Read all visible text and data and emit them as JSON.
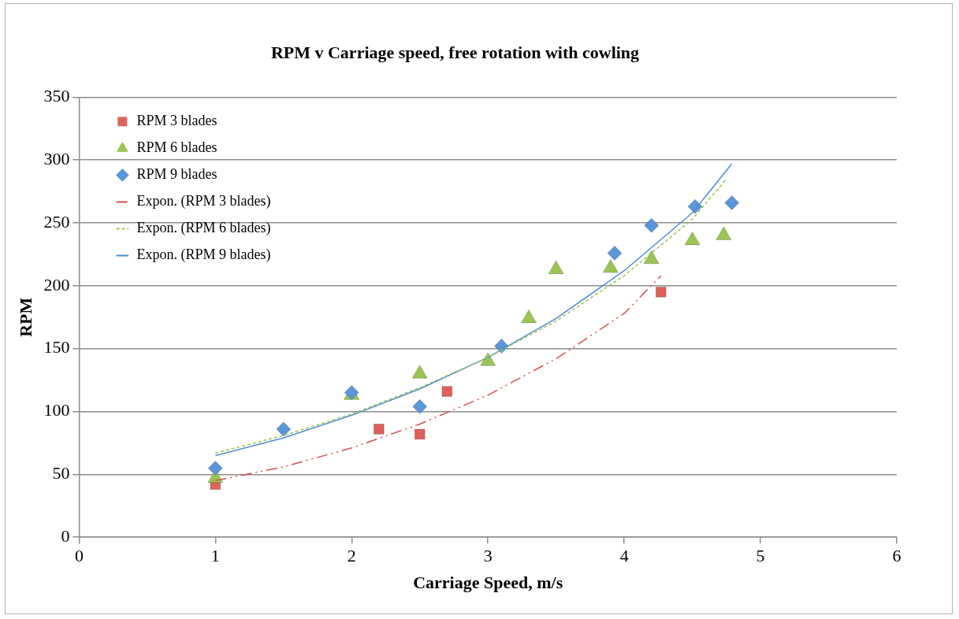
{
  "chart_data": {
    "type": "scatter",
    "title": "RPM v Carriage speed, free rotation with cowling",
    "xlabel": "Carriage Speed, m/s",
    "ylabel": "RPM",
    "xlim": [
      0,
      6
    ],
    "xticks": [
      0,
      1,
      2,
      3,
      4,
      5,
      6
    ],
    "ylim": [
      0,
      350
    ],
    "yticks": [
      0,
      50,
      100,
      150,
      200,
      250,
      300,
      350
    ],
    "grid": "y",
    "legend": "top left",
    "series": [
      {
        "name": "RPM 3 blades",
        "color": "#e0605a",
        "marker": "square",
        "x": [
          1,
          2.2,
          2.5,
          2.7,
          4.27
        ],
        "values": [
          42,
          86,
          82,
          116,
          195
        ]
      },
      {
        "name": "RPM 6 blades",
        "color": "#9bc553",
        "marker": "triangle",
        "x": [
          1,
          2,
          2.5,
          3,
          3.3,
          3.5,
          3.9,
          4.2,
          4.5,
          4.73
        ],
        "values": [
          47,
          113,
          130,
          140,
          174,
          213,
          214,
          221,
          236,
          240
        ]
      },
      {
        "name": "RPM 9 blades",
        "color": "#5b96d8",
        "marker": "diamond",
        "x": [
          1,
          1.5,
          2,
          2.5,
          3.1,
          3.93,
          4.2,
          4.52,
          4.79
        ],
        "values": [
          55,
          86,
          115,
          104,
          152,
          226,
          248,
          263,
          266
        ]
      },
      {
        "name": "Expon. (RPM 3 blades)",
        "type": "line",
        "color": "#d0504c",
        "line_style": "dashed",
        "marker": "none",
        "x": [
          1,
          1.5,
          2,
          2.5,
          3,
          3.5,
          4,
          4.27
        ],
        "values": [
          45,
          56,
          71,
          90,
          113,
          142,
          178,
          208
        ]
      },
      {
        "name": "Expon. (RPM 6 blades)",
        "type": "line",
        "color": "#9bc553",
        "line_style": "dotted",
        "marker": "none",
        "x": [
          1,
          1.5,
          2,
          2.5,
          3,
          3.5,
          4,
          4.5,
          4.75
        ],
        "values": [
          67,
          81,
          98,
          119,
          143,
          172,
          208,
          253,
          285
        ]
      },
      {
        "name": "Expon. (RPM 9 blades)",
        "type": "line",
        "color": "#4f8cd0",
        "line_style": "solid",
        "marker": "none",
        "x": [
          1,
          1.5,
          2,
          2.5,
          3,
          3.5,
          4,
          4.5,
          4.79
        ],
        "values": [
          65,
          79,
          97,
          118,
          143,
          174,
          212,
          258,
          297
        ]
      }
    ]
  }
}
